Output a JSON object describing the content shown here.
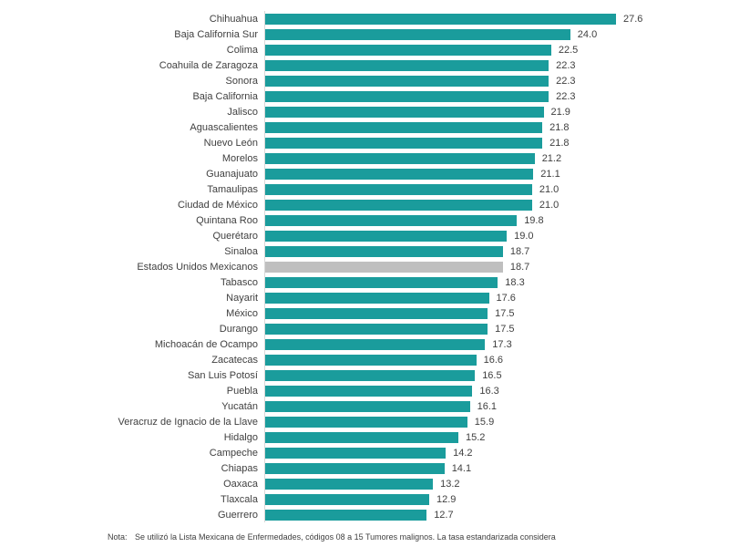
{
  "chart_data": {
    "type": "bar",
    "orientation": "horizontal",
    "title": "",
    "xlabel": "",
    "ylabel": "",
    "xlim": [
      0,
      28.5
    ],
    "grid": false,
    "legend": null,
    "bar_color": "#1a9c9c",
    "highlight_color": "#bfbfbf",
    "highlight_index": 16,
    "categories": [
      "Chihuahua",
      "Baja California Sur",
      "Colima",
      "Coahuila de Zaragoza",
      "Sonora",
      "Baja California",
      "Jalisco",
      "Aguascalientes",
      "Nuevo León",
      "Morelos",
      "Guanajuato",
      "Tamaulipas",
      "Ciudad de México",
      "Quintana Roo",
      "Querétaro",
      "Sinaloa",
      "Estados Unidos Mexicanos",
      "Tabasco",
      "Nayarit",
      "México",
      "Durango",
      "Michoacán de Ocampo",
      "Zacatecas",
      "San Luis Potosí",
      "Puebla",
      "Yucatán",
      "Veracruz de Ignacio de la Llave",
      "Hidalgo",
      "Campeche",
      "Chiapas",
      "Oaxaca",
      "Tlaxcala",
      "Guerrero"
    ],
    "values": [
      27.6,
      24.0,
      22.5,
      22.3,
      22.3,
      22.3,
      21.9,
      21.8,
      21.8,
      21.2,
      21.1,
      21.0,
      21.0,
      19.8,
      19.0,
      18.7,
      18.7,
      18.3,
      17.6,
      17.5,
      17.5,
      17.3,
      16.6,
      16.5,
      16.3,
      16.1,
      15.9,
      15.2,
      14.2,
      14.1,
      13.2,
      12.9,
      12.7
    ]
  },
  "note": {
    "label": "Nota:",
    "text": "Se utilizó la Lista Mexicana de Enfermedades, códigos 08 a 15 Tumores malignos. La tasa estandarizada considera"
  }
}
